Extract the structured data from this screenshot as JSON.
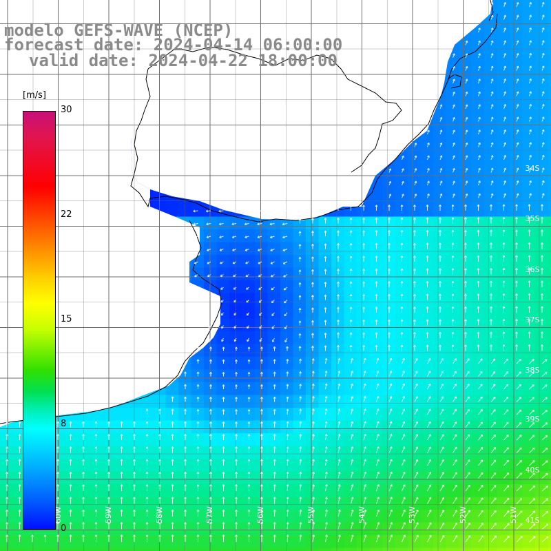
{
  "title": {
    "model": "modelo GEFS-WAVE (NCEP)",
    "forecast": "forecast date: 2024-04-14 06:00:00",
    "valid": "valid date: 2024-04-22 18:00:00"
  },
  "colorbar": {
    "unit": "[m/s]",
    "ticks": [
      {
        "label": "30",
        "value": 30
      },
      {
        "label": "22",
        "value": 22
      },
      {
        "label": "15",
        "value": 15
      },
      {
        "label": "8",
        "value": 8
      },
      {
        "label": "0",
        "value": 0
      }
    ],
    "colors": [
      "#c8107a",
      "#ff0000",
      "#ff7000",
      "#ffff00",
      "#30e000",
      "#00ffff",
      "#0060ff",
      "#0010ff"
    ]
  },
  "map": {
    "lon_range": [
      -61,
      -50
    ],
    "lat_range": [
      -41.5,
      -31.5
    ],
    "lat_labels": [
      "34S",
      "35S",
      "36S",
      "37S",
      "38S",
      "39S",
      "40S",
      "41S"
    ],
    "lon_labels": [
      "60W",
      "59W",
      "58W",
      "57W",
      "56W",
      "55W",
      "54W",
      "53W",
      "52W",
      "51W"
    ],
    "land_color": "#ffffff",
    "coast_color": "#000000"
  }
}
